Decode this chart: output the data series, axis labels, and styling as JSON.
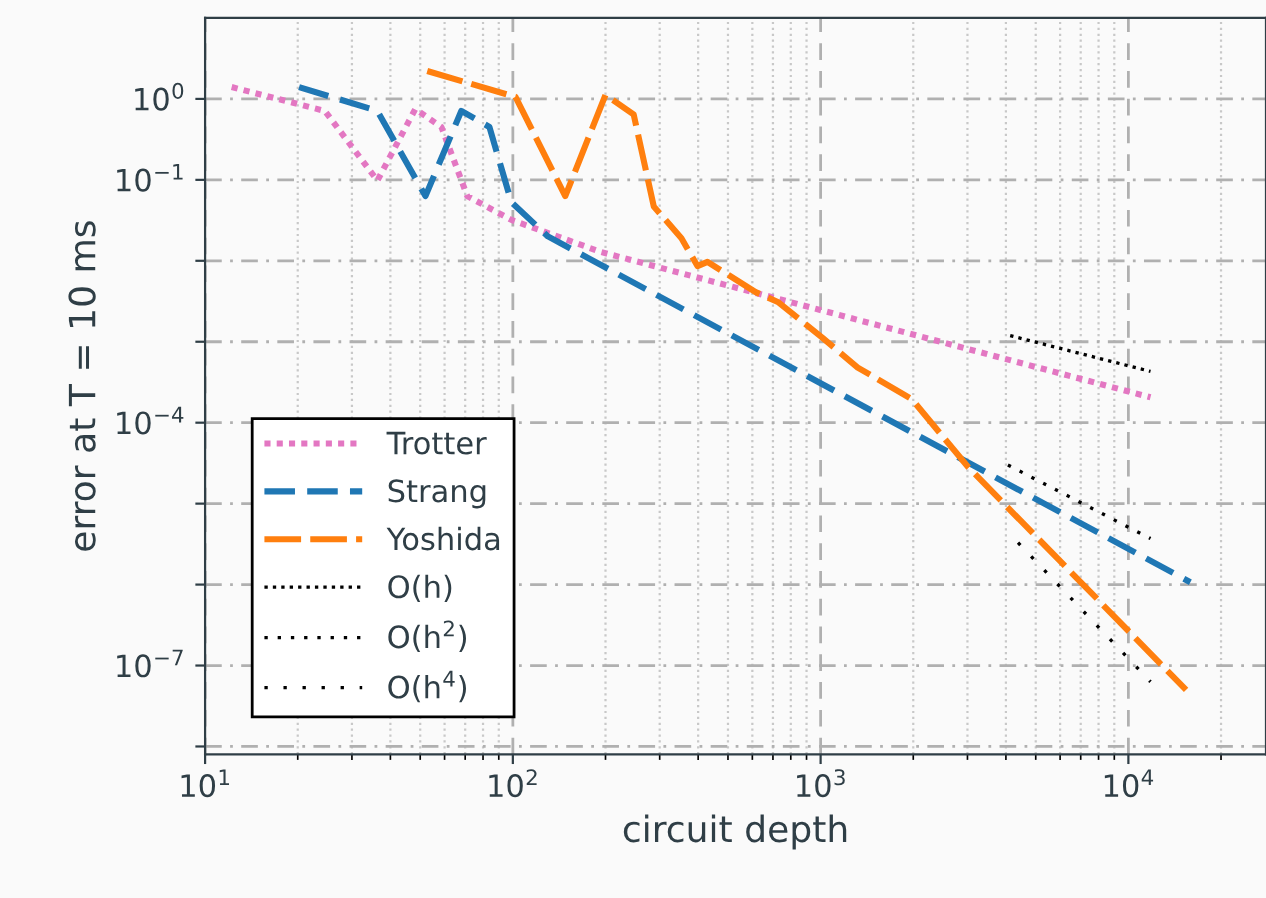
{
  "chart_data": {
    "type": "line",
    "xlabel": "circuit depth",
    "ylabel": "error at T = 10 ms",
    "log": "xy",
    "grid": true,
    "legend": "bottom left",
    "xlim": [
      10,
      28000
    ],
    "ylim": [
      8e-09,
      10
    ],
    "xticks": [
      {
        "value": 10,
        "label": "10$^{1}$"
      },
      {
        "value": 100,
        "label": "10$^{2}$"
      },
      {
        "value": 1000,
        "label": "10$^{3}$"
      },
      {
        "value": 10000,
        "label": "10$^{4}$"
      }
    ],
    "yticks": [
      {
        "value": 1,
        "label": "10$^{0}$"
      },
      {
        "value": 0.1,
        "label": "10$^{−1}$"
      },
      {
        "value": 0.01,
        "label": null
      },
      {
        "value": 0.001,
        "label": null
      },
      {
        "value": 0.0001,
        "label": "10$^{−4}$"
      },
      {
        "value": 1e-05,
        "label": null
      },
      {
        "value": 1e-06,
        "label": null
      },
      {
        "value": 1e-07,
        "label": "10$^{−7}$"
      },
      {
        "value": 1e-08,
        "label": null
      }
    ],
    "series": [
      {
        "name": "Trotter",
        "color": "#e377c2",
        "line_style": "dotted",
        "x": [
          12.2,
          24.5,
          36.3,
          48.2,
          58.6,
          71.1,
          98.9,
          194,
          11800
        ],
        "values": [
          1.4,
          0.71,
          0.098,
          0.75,
          0.45,
          0.063,
          0.032,
          0.0128,
          0.000206
        ]
      },
      {
        "name": "Strang",
        "color": "#1f77b4",
        "line_style": "dashed",
        "x": [
          20.2,
          36.3,
          52.0,
          68.0,
          83.9,
          98.9,
          130,
          15900
        ],
        "values": [
          1.4,
          0.71,
          0.063,
          0.71,
          0.45,
          0.053,
          0.02,
          1.07e-06
        ]
      },
      {
        "name": "Yoshida",
        "color": "#ff7f0e",
        "line_style": "dashed",
        "x": [
          52.7,
          102,
          148,
          200,
          247,
          287,
          353,
          398,
          429,
          615,
          726,
          1010,
          1320,
          1980,
          3010,
          15400
        ],
        "values": [
          2.21,
          1.06,
          0.063,
          1.12,
          0.64,
          0.047,
          0.019,
          0.0086,
          0.0097,
          0.0041,
          0.0031,
          0.00113,
          0.00048,
          0.000195,
          2.85e-05,
          5e-08
        ]
      },
      {
        "name": "O(h)",
        "color": "#000000",
        "line_style": "dotted",
        "x": [
          4130,
          11800
        ],
        "values": [
          0.00119,
          0.00043
        ]
      },
      {
        "name": "O(h$^{2}$)",
        "color": "#000000",
        "line_style": "dotted",
        "x": [
          4060,
          11800
        ],
        "values": [
          3e-05,
          3.7e-06
        ]
      },
      {
        "name": "O(h$^{4}$)",
        "color": "#000000",
        "line_style": "dotted",
        "x": [
          4380,
          11800
        ],
        "values": [
          3.3e-06,
          6.3e-08
        ]
      }
    ]
  }
}
